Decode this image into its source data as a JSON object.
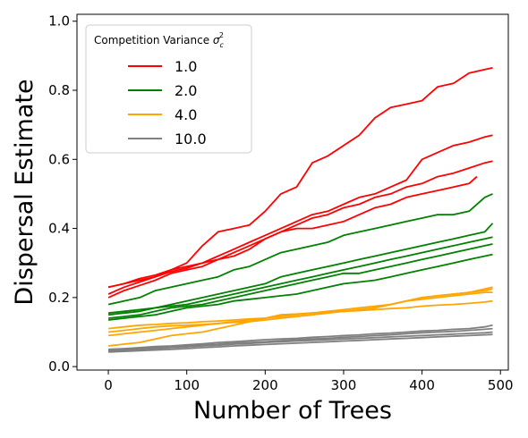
{
  "chart_data": {
    "type": "line",
    "xlabel": "Number of Trees",
    "ylabel": "Dispersal Estimate",
    "xlim": [
      -40,
      510
    ],
    "ylim": [
      -0.01,
      1.02
    ],
    "xticks": [
      0,
      100,
      200,
      300,
      400,
      500
    ],
    "yticks": [
      0.0,
      0.2,
      0.4,
      0.6,
      0.8,
      1.0
    ],
    "xtick_labels": [
      "0",
      "100",
      "200",
      "300",
      "400",
      "500"
    ],
    "ytick_labels": [
      "0.0",
      "0.2",
      "0.4",
      "0.6",
      "0.8",
      "1.0"
    ],
    "grid": false,
    "legend": {
      "title_prefix": "Competition Variance ",
      "title_symbol": "σ",
      "title_sub": "c",
      "title_sup": "2",
      "placement": "top-left",
      "entries": [
        {
          "label": "1.0",
          "color": "#ff0000"
        },
        {
          "label": "2.0",
          "color": "#008000"
        },
        {
          "label": "4.0",
          "color": "#ffa500"
        },
        {
          "label": "10.0",
          "color": "#808080"
        }
      ]
    },
    "series": [
      {
        "group": "1.0",
        "color": "#ff0000",
        "x": [
          0,
          20,
          40,
          60,
          80,
          100,
          120,
          140,
          160,
          180,
          200,
          220,
          240,
          260,
          280,
          300,
          320,
          340,
          360,
          380,
          400,
          420,
          440,
          460,
          480,
          490
        ],
        "y": [
          0.23,
          0.24,
          0.255,
          0.265,
          0.28,
          0.3,
          0.35,
          0.39,
          0.4,
          0.41,
          0.45,
          0.5,
          0.52,
          0.59,
          0.61,
          0.64,
          0.67,
          0.72,
          0.75,
          0.76,
          0.77,
          0.81,
          0.82,
          0.85,
          0.86,
          0.865
        ]
      },
      {
        "group": "1.0",
        "color": "#ff0000",
        "x": [
          0,
          20,
          40,
          60,
          80,
          100,
          120,
          140,
          160,
          180,
          200,
          220,
          240,
          260,
          280,
          300,
          320,
          340,
          360,
          380,
          400,
          420,
          440,
          460,
          480,
          490
        ],
        "y": [
          0.21,
          0.23,
          0.245,
          0.26,
          0.28,
          0.29,
          0.3,
          0.32,
          0.34,
          0.36,
          0.38,
          0.4,
          0.42,
          0.44,
          0.45,
          0.47,
          0.49,
          0.5,
          0.52,
          0.54,
          0.6,
          0.62,
          0.64,
          0.65,
          0.665,
          0.67
        ]
      },
      {
        "group": "1.0",
        "color": "#ff0000",
        "x": [
          0,
          20,
          40,
          60,
          80,
          100,
          120,
          140,
          160,
          180,
          200,
          220,
          240,
          260,
          280,
          300,
          320,
          340,
          360,
          380,
          400,
          420,
          440,
          460,
          480,
          490
        ],
        "y": [
          0.2,
          0.22,
          0.235,
          0.25,
          0.27,
          0.28,
          0.29,
          0.31,
          0.33,
          0.35,
          0.37,
          0.39,
          0.41,
          0.43,
          0.44,
          0.46,
          0.47,
          0.49,
          0.5,
          0.52,
          0.53,
          0.55,
          0.56,
          0.575,
          0.59,
          0.595
        ]
      },
      {
        "group": "1.0",
        "color": "#ff0000",
        "x": [
          0,
          20,
          40,
          60,
          80,
          100,
          120,
          140,
          160,
          180,
          200,
          220,
          240,
          260,
          280,
          300,
          320,
          340,
          360,
          380,
          400,
          420,
          440,
          460,
          470
        ],
        "y": [
          0.23,
          0.24,
          0.25,
          0.26,
          0.275,
          0.285,
          0.3,
          0.31,
          0.32,
          0.34,
          0.37,
          0.39,
          0.4,
          0.4,
          0.41,
          0.42,
          0.44,
          0.46,
          0.47,
          0.49,
          0.5,
          0.51,
          0.52,
          0.53,
          0.55
        ]
      },
      {
        "group": "2.0",
        "color": "#008000",
        "x": [
          0,
          20,
          40,
          60,
          80,
          100,
          120,
          140,
          160,
          180,
          200,
          220,
          240,
          260,
          280,
          300,
          320,
          340,
          360,
          380,
          400,
          420,
          440,
          460,
          480,
          490
        ],
        "y": [
          0.18,
          0.19,
          0.2,
          0.22,
          0.23,
          0.24,
          0.25,
          0.26,
          0.28,
          0.29,
          0.31,
          0.33,
          0.34,
          0.35,
          0.36,
          0.38,
          0.39,
          0.4,
          0.41,
          0.42,
          0.43,
          0.44,
          0.44,
          0.45,
          0.49,
          0.5
        ]
      },
      {
        "group": "2.0",
        "color": "#008000",
        "x": [
          0,
          20,
          40,
          60,
          80,
          100,
          120,
          140,
          160,
          180,
          200,
          220,
          240,
          260,
          280,
          300,
          320,
          340,
          360,
          380,
          400,
          420,
          440,
          460,
          480,
          490
        ],
        "y": [
          0.155,
          0.16,
          0.165,
          0.17,
          0.18,
          0.19,
          0.2,
          0.21,
          0.22,
          0.23,
          0.24,
          0.26,
          0.27,
          0.28,
          0.29,
          0.3,
          0.31,
          0.32,
          0.33,
          0.34,
          0.35,
          0.36,
          0.37,
          0.38,
          0.39,
          0.415
        ]
      },
      {
        "group": "2.0",
        "color": "#008000",
        "x": [
          0,
          20,
          40,
          60,
          80,
          100,
          120,
          140,
          160,
          180,
          200,
          220,
          240,
          260,
          280,
          300,
          320,
          340,
          360,
          380,
          400,
          420,
          440,
          460,
          480,
          490
        ],
        "y": [
          0.15,
          0.155,
          0.16,
          0.17,
          0.175,
          0.18,
          0.19,
          0.2,
          0.21,
          0.22,
          0.23,
          0.24,
          0.25,
          0.26,
          0.27,
          0.28,
          0.29,
          0.3,
          0.31,
          0.32,
          0.33,
          0.34,
          0.35,
          0.36,
          0.37,
          0.375
        ]
      },
      {
        "group": "2.0",
        "color": "#008000",
        "x": [
          0,
          20,
          40,
          60,
          80,
          100,
          120,
          140,
          160,
          180,
          200,
          220,
          240,
          260,
          280,
          300,
          320,
          340,
          360,
          380,
          400,
          420,
          440,
          460,
          480,
          490
        ],
        "y": [
          0.14,
          0.145,
          0.15,
          0.16,
          0.17,
          0.175,
          0.18,
          0.19,
          0.2,
          0.21,
          0.22,
          0.23,
          0.24,
          0.25,
          0.26,
          0.27,
          0.27,
          0.28,
          0.29,
          0.3,
          0.31,
          0.32,
          0.33,
          0.34,
          0.35,
          0.355
        ]
      },
      {
        "group": "2.0",
        "color": "#008000",
        "x": [
          0,
          20,
          40,
          60,
          80,
          100,
          120,
          140,
          160,
          180,
          200,
          220,
          240,
          260,
          280,
          300,
          320,
          340,
          360,
          380,
          400,
          420,
          440,
          460,
          480,
          490
        ],
        "y": [
          0.135,
          0.14,
          0.145,
          0.15,
          0.16,
          0.17,
          0.175,
          0.18,
          0.19,
          0.195,
          0.2,
          0.205,
          0.21,
          0.22,
          0.23,
          0.24,
          0.245,
          0.25,
          0.26,
          0.27,
          0.28,
          0.29,
          0.3,
          0.31,
          0.32,
          0.325
        ]
      },
      {
        "group": "4.0",
        "color": "#ffa500",
        "x": [
          0,
          20,
          40,
          60,
          80,
          100,
          120,
          140,
          160,
          180,
          200,
          220,
          240,
          260,
          280,
          300,
          320,
          340,
          360,
          380,
          400,
          420,
          440,
          460,
          480,
          490
        ],
        "y": [
          0.11,
          0.115,
          0.12,
          0.122,
          0.125,
          0.127,
          0.13,
          0.132,
          0.135,
          0.138,
          0.14,
          0.15,
          0.152,
          0.155,
          0.157,
          0.16,
          0.165,
          0.17,
          0.18,
          0.19,
          0.2,
          0.205,
          0.21,
          0.215,
          0.225,
          0.23
        ]
      },
      {
        "group": "4.0",
        "color": "#ffa500",
        "x": [
          0,
          20,
          40,
          60,
          80,
          100,
          120,
          140,
          160,
          180,
          200,
          220,
          240,
          260,
          280,
          300,
          320,
          340,
          360,
          380,
          400,
          420,
          440,
          460,
          480,
          490
        ],
        "y": [
          0.1,
          0.105,
          0.11,
          0.115,
          0.118,
          0.12,
          0.122,
          0.125,
          0.128,
          0.13,
          0.135,
          0.14,
          0.145,
          0.15,
          0.155,
          0.16,
          0.165,
          0.17,
          0.18,
          0.19,
          0.2,
          0.205,
          0.21,
          0.215,
          0.22,
          0.225
        ]
      },
      {
        "group": "4.0",
        "color": "#ffa500",
        "x": [
          0,
          20,
          40,
          60,
          80,
          100,
          120,
          140,
          160,
          180,
          200,
          220,
          240,
          260,
          280,
          300,
          320,
          340,
          360,
          380,
          400,
          420,
          440,
          460,
          480,
          490
        ],
        "y": [
          0.09,
          0.095,
          0.1,
          0.105,
          0.11,
          0.115,
          0.12,
          0.125,
          0.13,
          0.135,
          0.14,
          0.145,
          0.15,
          0.155,
          0.16,
          0.165,
          0.17,
          0.175,
          0.18,
          0.19,
          0.195,
          0.2,
          0.205,
          0.21,
          0.215,
          0.215
        ]
      },
      {
        "group": "4.0",
        "color": "#ffa500",
        "x": [
          0,
          20,
          40,
          60,
          80,
          100,
          120,
          140,
          160,
          180,
          200,
          220,
          240,
          260,
          280,
          300,
          320,
          340,
          360,
          380,
          400,
          420,
          440,
          460,
          480,
          490
        ],
        "y": [
          0.06,
          0.065,
          0.07,
          0.08,
          0.09,
          0.095,
          0.1,
          0.11,
          0.12,
          0.13,
          0.14,
          0.15,
          0.152,
          0.155,
          0.157,
          0.16,
          0.162,
          0.165,
          0.168,
          0.17,
          0.175,
          0.178,
          0.18,
          0.183,
          0.187,
          0.19
        ]
      },
      {
        "group": "10.0",
        "color": "#808080",
        "x": [
          0,
          20,
          40,
          60,
          80,
          100,
          120,
          140,
          160,
          180,
          200,
          220,
          240,
          260,
          280,
          300,
          320,
          340,
          360,
          380,
          400,
          420,
          440,
          460,
          480,
          490
        ],
        "y": [
          0.05,
          0.052,
          0.055,
          0.058,
          0.06,
          0.063,
          0.066,
          0.07,
          0.072,
          0.075,
          0.078,
          0.08,
          0.082,
          0.085,
          0.087,
          0.09,
          0.092,
          0.095,
          0.097,
          0.1,
          0.103,
          0.105,
          0.108,
          0.11,
          0.115,
          0.12
        ]
      },
      {
        "group": "10.0",
        "color": "#808080",
        "x": [
          0,
          20,
          40,
          60,
          80,
          100,
          120,
          140,
          160,
          180,
          200,
          220,
          240,
          260,
          280,
          300,
          320,
          340,
          360,
          380,
          400,
          420,
          440,
          460,
          480,
          490
        ],
        "y": [
          0.048,
          0.05,
          0.052,
          0.055,
          0.058,
          0.06,
          0.062,
          0.065,
          0.068,
          0.07,
          0.072,
          0.075,
          0.078,
          0.08,
          0.082,
          0.085,
          0.087,
          0.09,
          0.092,
          0.095,
          0.098,
          0.1,
          0.102,
          0.105,
          0.108,
          0.11
        ]
      },
      {
        "group": "10.0",
        "color": "#808080",
        "x": [
          0,
          20,
          40,
          60,
          80,
          100,
          120,
          140,
          160,
          180,
          200,
          220,
          240,
          260,
          280,
          300,
          320,
          340,
          360,
          380,
          400,
          420,
          440,
          460,
          480,
          490
        ],
        "y": [
          0.045,
          0.047,
          0.05,
          0.052,
          0.055,
          0.057,
          0.06,
          0.062,
          0.065,
          0.067,
          0.07,
          0.072,
          0.074,
          0.076,
          0.078,
          0.08,
          0.082,
          0.084,
          0.086,
          0.088,
          0.09,
          0.092,
          0.094,
          0.096,
          0.098,
          0.1
        ]
      },
      {
        "group": "10.0",
        "color": "#808080",
        "x": [
          0,
          20,
          40,
          60,
          80,
          100,
          120,
          140,
          160,
          180,
          200,
          220,
          240,
          260,
          280,
          300,
          320,
          340,
          360,
          380,
          400,
          420,
          440,
          460,
          480,
          490
        ],
        "y": [
          0.042,
          0.044,
          0.046,
          0.048,
          0.05,
          0.052,
          0.055,
          0.057,
          0.06,
          0.062,
          0.064,
          0.066,
          0.068,
          0.07,
          0.072,
          0.074,
          0.076,
          0.078,
          0.08,
          0.082,
          0.084,
          0.086,
          0.088,
          0.09,
          0.092,
          0.093
        ]
      }
    ]
  }
}
